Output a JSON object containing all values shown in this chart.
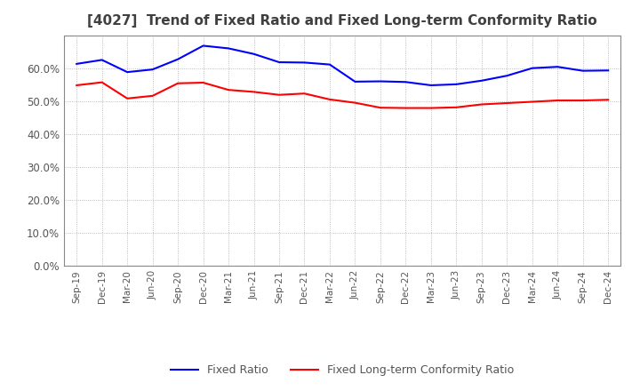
{
  "title": "[4027]  Trend of Fixed Ratio and Fixed Long-term Conformity Ratio",
  "x_labels": [
    "Sep-19",
    "Dec-19",
    "Mar-20",
    "Jun-20",
    "Sep-20",
    "Dec-20",
    "Mar-21",
    "Jun-21",
    "Sep-21",
    "Dec-21",
    "Mar-22",
    "Jun-22",
    "Sep-22",
    "Dec-22",
    "Mar-23",
    "Jun-23",
    "Sep-23",
    "Dec-23",
    "Mar-24",
    "Jun-24",
    "Sep-24",
    "Dec-24"
  ],
  "fixed_ratio": [
    0.613,
    0.625,
    0.588,
    0.596,
    0.627,
    0.668,
    0.66,
    0.643,
    0.618,
    0.617,
    0.611,
    0.559,
    0.56,
    0.558,
    0.548,
    0.551,
    0.562,
    0.577,
    0.6,
    0.604,
    0.592,
    0.593
  ],
  "fixed_lt_ratio": [
    0.548,
    0.557,
    0.508,
    0.516,
    0.554,
    0.556,
    0.534,
    0.528,
    0.519,
    0.523,
    0.505,
    0.495,
    0.48,
    0.479,
    0.479,
    0.481,
    0.49,
    0.494,
    0.498,
    0.502,
    0.502,
    0.504
  ],
  "fixed_ratio_color": "#0000FF",
  "fixed_lt_ratio_color": "#FF0000",
  "ylim": [
    0.0,
    0.7
  ],
  "yticks": [
    0.0,
    0.1,
    0.2,
    0.3,
    0.4,
    0.5,
    0.6
  ],
  "background_color": "#FFFFFF",
  "grid_color": "#AAAAAA",
  "title_color": "#404040",
  "legend_fixed_ratio": "Fixed Ratio",
  "legend_fixed_lt_ratio": "Fixed Long-term Conformity Ratio"
}
